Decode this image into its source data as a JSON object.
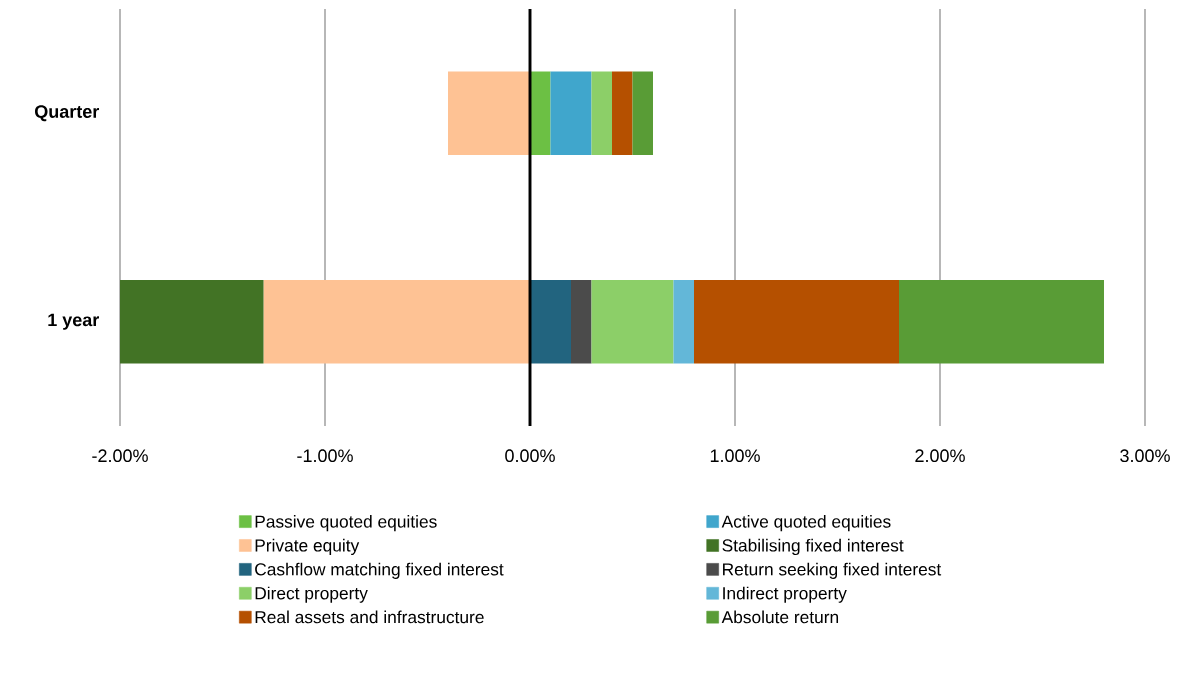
{
  "chart_data": {
    "type": "bar",
    "orientation": "horizontal",
    "stacked": true,
    "categories": [
      "Quarter",
      "1 year"
    ],
    "series": [
      {
        "name": "Passive quoted equities",
        "color": "#6cc044",
        "values": [
          0.1,
          null
        ]
      },
      {
        "name": "Active quoted equities",
        "color": "#40a6cc",
        "values": [
          0.2,
          null
        ]
      },
      {
        "name": "Private equity",
        "color": "#fec294",
        "values": [
          -0.4,
          -1.3
        ]
      },
      {
        "name": "Stabilising fixed interest",
        "color": "#427325",
        "values": [
          null,
          -0.7
        ]
      },
      {
        "name": "Cashflow matching fixed interest",
        "color": "#22647f",
        "values": [
          null,
          0.2
        ]
      },
      {
        "name": "Return seeking fixed interest",
        "color": "#4b4b4b",
        "values": [
          null,
          0.1
        ]
      },
      {
        "name": "Direct property",
        "color": "#8ccf68",
        "values": [
          0.1,
          0.4
        ]
      },
      {
        "name": "Indirect property",
        "color": "#63b7d8",
        "values": [
          null,
          0.1
        ]
      },
      {
        "name": "Real assets and infrastructure",
        "color": "#b55000",
        "values": [
          0.1,
          1.0
        ]
      },
      {
        "name": "Absolute return",
        "color": "#599c36",
        "values": [
          0.1,
          1.0
        ]
      }
    ],
    "xlim": [
      -2,
      3
    ],
    "xticks": [
      {
        "value": -2,
        "label": "-2.00%"
      },
      {
        "value": -1,
        "label": "-1.00%"
      },
      {
        "value": 0,
        "label": "0.00%"
      },
      {
        "value": 1,
        "label": "1.00%"
      },
      {
        "value": 2,
        "label": "2.00%"
      },
      {
        "value": 3,
        "label": "3.00%"
      }
    ],
    "grid": "x",
    "legend": "bottom"
  }
}
